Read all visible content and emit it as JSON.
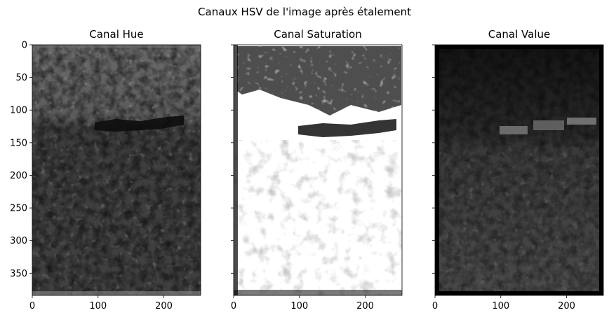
{
  "figure": {
    "suptitle": "Canaux HSV de l'image après étalement"
  },
  "chart_data": [
    {
      "type": "heatmap",
      "title": "Canal Hue",
      "colormap": "gray",
      "xlim": [
        0,
        256
      ],
      "ylim": [
        384,
        0
      ],
      "xticks": [
        0,
        100,
        200
      ],
      "yticks": [
        0,
        50,
        100,
        150,
        200,
        250,
        300,
        350
      ],
      "ytick_labels_shown": true
    },
    {
      "type": "heatmap",
      "title": "Canal Saturation",
      "colormap": "gray",
      "xlim": [
        0,
        256
      ],
      "ylim": [
        384,
        0
      ],
      "xticks": [
        0,
        100,
        200
      ],
      "yticks": [
        0,
        50,
        100,
        150,
        200,
        250,
        300,
        350
      ],
      "ytick_labels_shown": false
    },
    {
      "type": "heatmap",
      "title": "Canal Value",
      "colormap": "gray",
      "xlim": [
        0,
        256
      ],
      "ylim": [
        384,
        0
      ],
      "xticks": [
        0,
        100,
        200
      ],
      "yticks": [
        0,
        50,
        100,
        150,
        200,
        250,
        300,
        350
      ],
      "ytick_labels_shown": false
    }
  ]
}
